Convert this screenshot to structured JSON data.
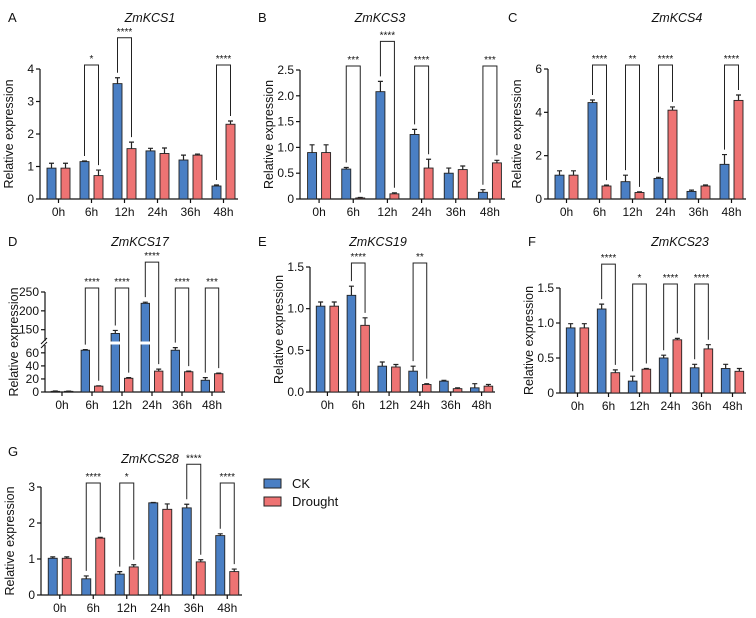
{
  "legend": [
    {
      "label": "CK",
      "color": "#4a7fc4"
    },
    {
      "label": "Drought",
      "color": "#ee7373"
    }
  ],
  "y_axis_label": "Relative expression",
  "chart_data": [
    {
      "type": "bar",
      "letter": "A",
      "title": "ZmKCS1",
      "categories": [
        "0h",
        "6h",
        "12h",
        "24h",
        "36h",
        "48h"
      ],
      "ylim": [
        0,
        4
      ],
      "yticks": [
        0,
        1,
        2,
        3,
        4
      ],
      "ytick_labels": [
        "0",
        "1",
        "2",
        "3",
        "4"
      ],
      "series": [
        {
          "name": "CK",
          "values": [
            0.95,
            1.15,
            3.55,
            1.48,
            1.2,
            0.4
          ],
          "err": [
            0.15,
            0.02,
            0.18,
            0.08,
            0.15,
            0.03
          ]
        },
        {
          "name": "Drought",
          "values": [
            0.95,
            0.72,
            1.55,
            1.4,
            1.35,
            2.3
          ],
          "err": [
            0.15,
            0.17,
            0.2,
            0.17,
            0.03,
            0.1
          ]
        }
      ],
      "significance": [
        "",
        "*",
        "****",
        "",
        "",
        "****"
      ]
    },
    {
      "type": "bar",
      "letter": "B",
      "title": "ZmKCS3",
      "categories": [
        "0h",
        "6h",
        "12h",
        "24h",
        "36h",
        "48h"
      ],
      "ylim": [
        0,
        2.5
      ],
      "yticks": [
        0,
        0.5,
        1,
        1.5,
        2,
        2.5
      ],
      "ytick_labels": [
        "0",
        "0.5",
        "1.0",
        "1.5",
        "2.0",
        "2.5"
      ],
      "series": [
        {
          "name": "CK",
          "values": [
            0.9,
            0.58,
            2.08,
            1.25,
            0.5,
            0.13
          ],
          "err": [
            0.15,
            0.03,
            0.2,
            0.1,
            0.1,
            0.05
          ]
        },
        {
          "name": "Drought",
          "values": [
            0.9,
            0.02,
            0.1,
            0.6,
            0.57,
            0.7
          ],
          "err": [
            0.15,
            0.01,
            0.02,
            0.17,
            0.07,
            0.05
          ]
        }
      ],
      "significance": [
        "",
        "***",
        "****",
        "****",
        "",
        "***"
      ]
    },
    {
      "type": "bar",
      "letter": "C",
      "title": "ZmKCS4",
      "categories": [
        "0h",
        "6h",
        "12h",
        "24h",
        "36h",
        "48h"
      ],
      "ylim": [
        0,
        6
      ],
      "yticks": [
        0,
        2,
        4,
        6
      ],
      "ytick_labels": [
        "0",
        "2",
        "4",
        "6"
      ],
      "series": [
        {
          "name": "CK",
          "values": [
            1.1,
            4.45,
            0.8,
            0.95,
            0.35,
            1.6
          ],
          "err": [
            0.2,
            0.12,
            0.3,
            0.05,
            0.06,
            0.45
          ]
        },
        {
          "name": "Drought",
          "values": [
            1.1,
            0.6,
            0.3,
            4.1,
            0.6,
            4.55
          ],
          "err": [
            0.2,
            0.04,
            0.03,
            0.15,
            0.05,
            0.25
          ]
        }
      ],
      "significance": [
        "",
        "****",
        "**",
        "****",
        "",
        "****"
      ]
    },
    {
      "type": "bar",
      "letter": "D",
      "title": "ZmKCS17",
      "categories": [
        "0h",
        "6h",
        "12h",
        "24h",
        "36h",
        "48h"
      ],
      "ylim": [
        0,
        250
      ],
      "axis_break": [
        72,
        120
      ],
      "yticks": [
        0,
        20,
        40,
        60,
        150,
        200,
        250
      ],
      "ytick_labels": [
        "0",
        "20",
        "40",
        "60",
        "150",
        "200",
        "250"
      ],
      "series": [
        {
          "name": "CK",
          "values": [
            1,
            64,
            140,
            220,
            64,
            18
          ],
          "err": [
            0.5,
            1,
            8,
            3,
            4,
            4
          ]
        },
        {
          "name": "Drought",
          "values": [
            1,
            9,
            21,
            32,
            31,
            28
          ],
          "err": [
            0.3,
            0.5,
            1,
            3,
            1,
            1
          ]
        }
      ],
      "significance": [
        "",
        "****",
        "****",
        "****",
        "****",
        "***"
      ]
    },
    {
      "type": "bar",
      "letter": "E",
      "title": "ZmKCS19",
      "categories": [
        "0h",
        "6h",
        "12h",
        "24h",
        "36h",
        "48h"
      ],
      "ylim": [
        0,
        1.5
      ],
      "yticks": [
        0,
        0.5,
        1,
        1.5
      ],
      "ytick_labels": [
        "0.0",
        "0.5",
        "1.0",
        "1.5"
      ],
      "series": [
        {
          "name": "CK",
          "values": [
            1.03,
            1.16,
            0.31,
            0.25,
            0.13,
            0.05
          ],
          "err": [
            0.05,
            0.11,
            0.05,
            0.06,
            0.01,
            0.05
          ]
        },
        {
          "name": "Drought",
          "values": [
            1.03,
            0.8,
            0.3,
            0.09,
            0.04,
            0.07
          ],
          "err": [
            0.05,
            0.09,
            0.03,
            0.01,
            0.01,
            0.02
          ]
        }
      ],
      "significance": [
        "",
        "****",
        "",
        "**",
        "",
        ""
      ]
    },
    {
      "type": "bar",
      "letter": "F",
      "title": "ZmKCS23",
      "categories": [
        "0h",
        "6h",
        "12h",
        "24h",
        "36h",
        "48h"
      ],
      "ylim": [
        0,
        1.5
      ],
      "yticks": [
        0,
        0.5,
        1,
        1.5
      ],
      "ytick_labels": [
        "0",
        "0.5",
        "1.0",
        "1.5"
      ],
      "series": [
        {
          "name": "CK",
          "values": [
            0.93,
            1.2,
            0.17,
            0.5,
            0.36,
            0.35
          ],
          "err": [
            0.06,
            0.07,
            0.07,
            0.04,
            0.05,
            0.06
          ]
        },
        {
          "name": "Drought",
          "values": [
            0.93,
            0.29,
            0.34,
            0.76,
            0.63,
            0.31
          ],
          "err": [
            0.06,
            0.04,
            0.01,
            0.02,
            0.06,
            0.04
          ]
        }
      ],
      "significance": [
        "",
        "****",
        "*",
        "****",
        "****",
        ""
      ]
    },
    {
      "type": "bar",
      "letter": "G",
      "title": "ZmKCS28",
      "categories": [
        "0h",
        "6h",
        "12h",
        "24h",
        "36h",
        "48h"
      ],
      "ylim": [
        0,
        3
      ],
      "yticks": [
        0,
        1,
        2,
        3
      ],
      "ytick_labels": [
        "0",
        "1",
        "2",
        "3"
      ],
      "series": [
        {
          "name": "CK",
          "values": [
            1.02,
            0.45,
            0.58,
            2.56,
            2.42,
            1.65
          ],
          "err": [
            0.04,
            0.08,
            0.07,
            0.01,
            0.1,
            0.05
          ]
        },
        {
          "name": "Drought",
          "values": [
            1.02,
            1.58,
            0.78,
            2.38,
            0.92,
            0.65
          ],
          "err": [
            0.04,
            0.02,
            0.06,
            0.15,
            0.06,
            0.07
          ]
        }
      ],
      "significance": [
        "",
        "****",
        "*",
        "",
        "****",
        "****"
      ]
    }
  ]
}
